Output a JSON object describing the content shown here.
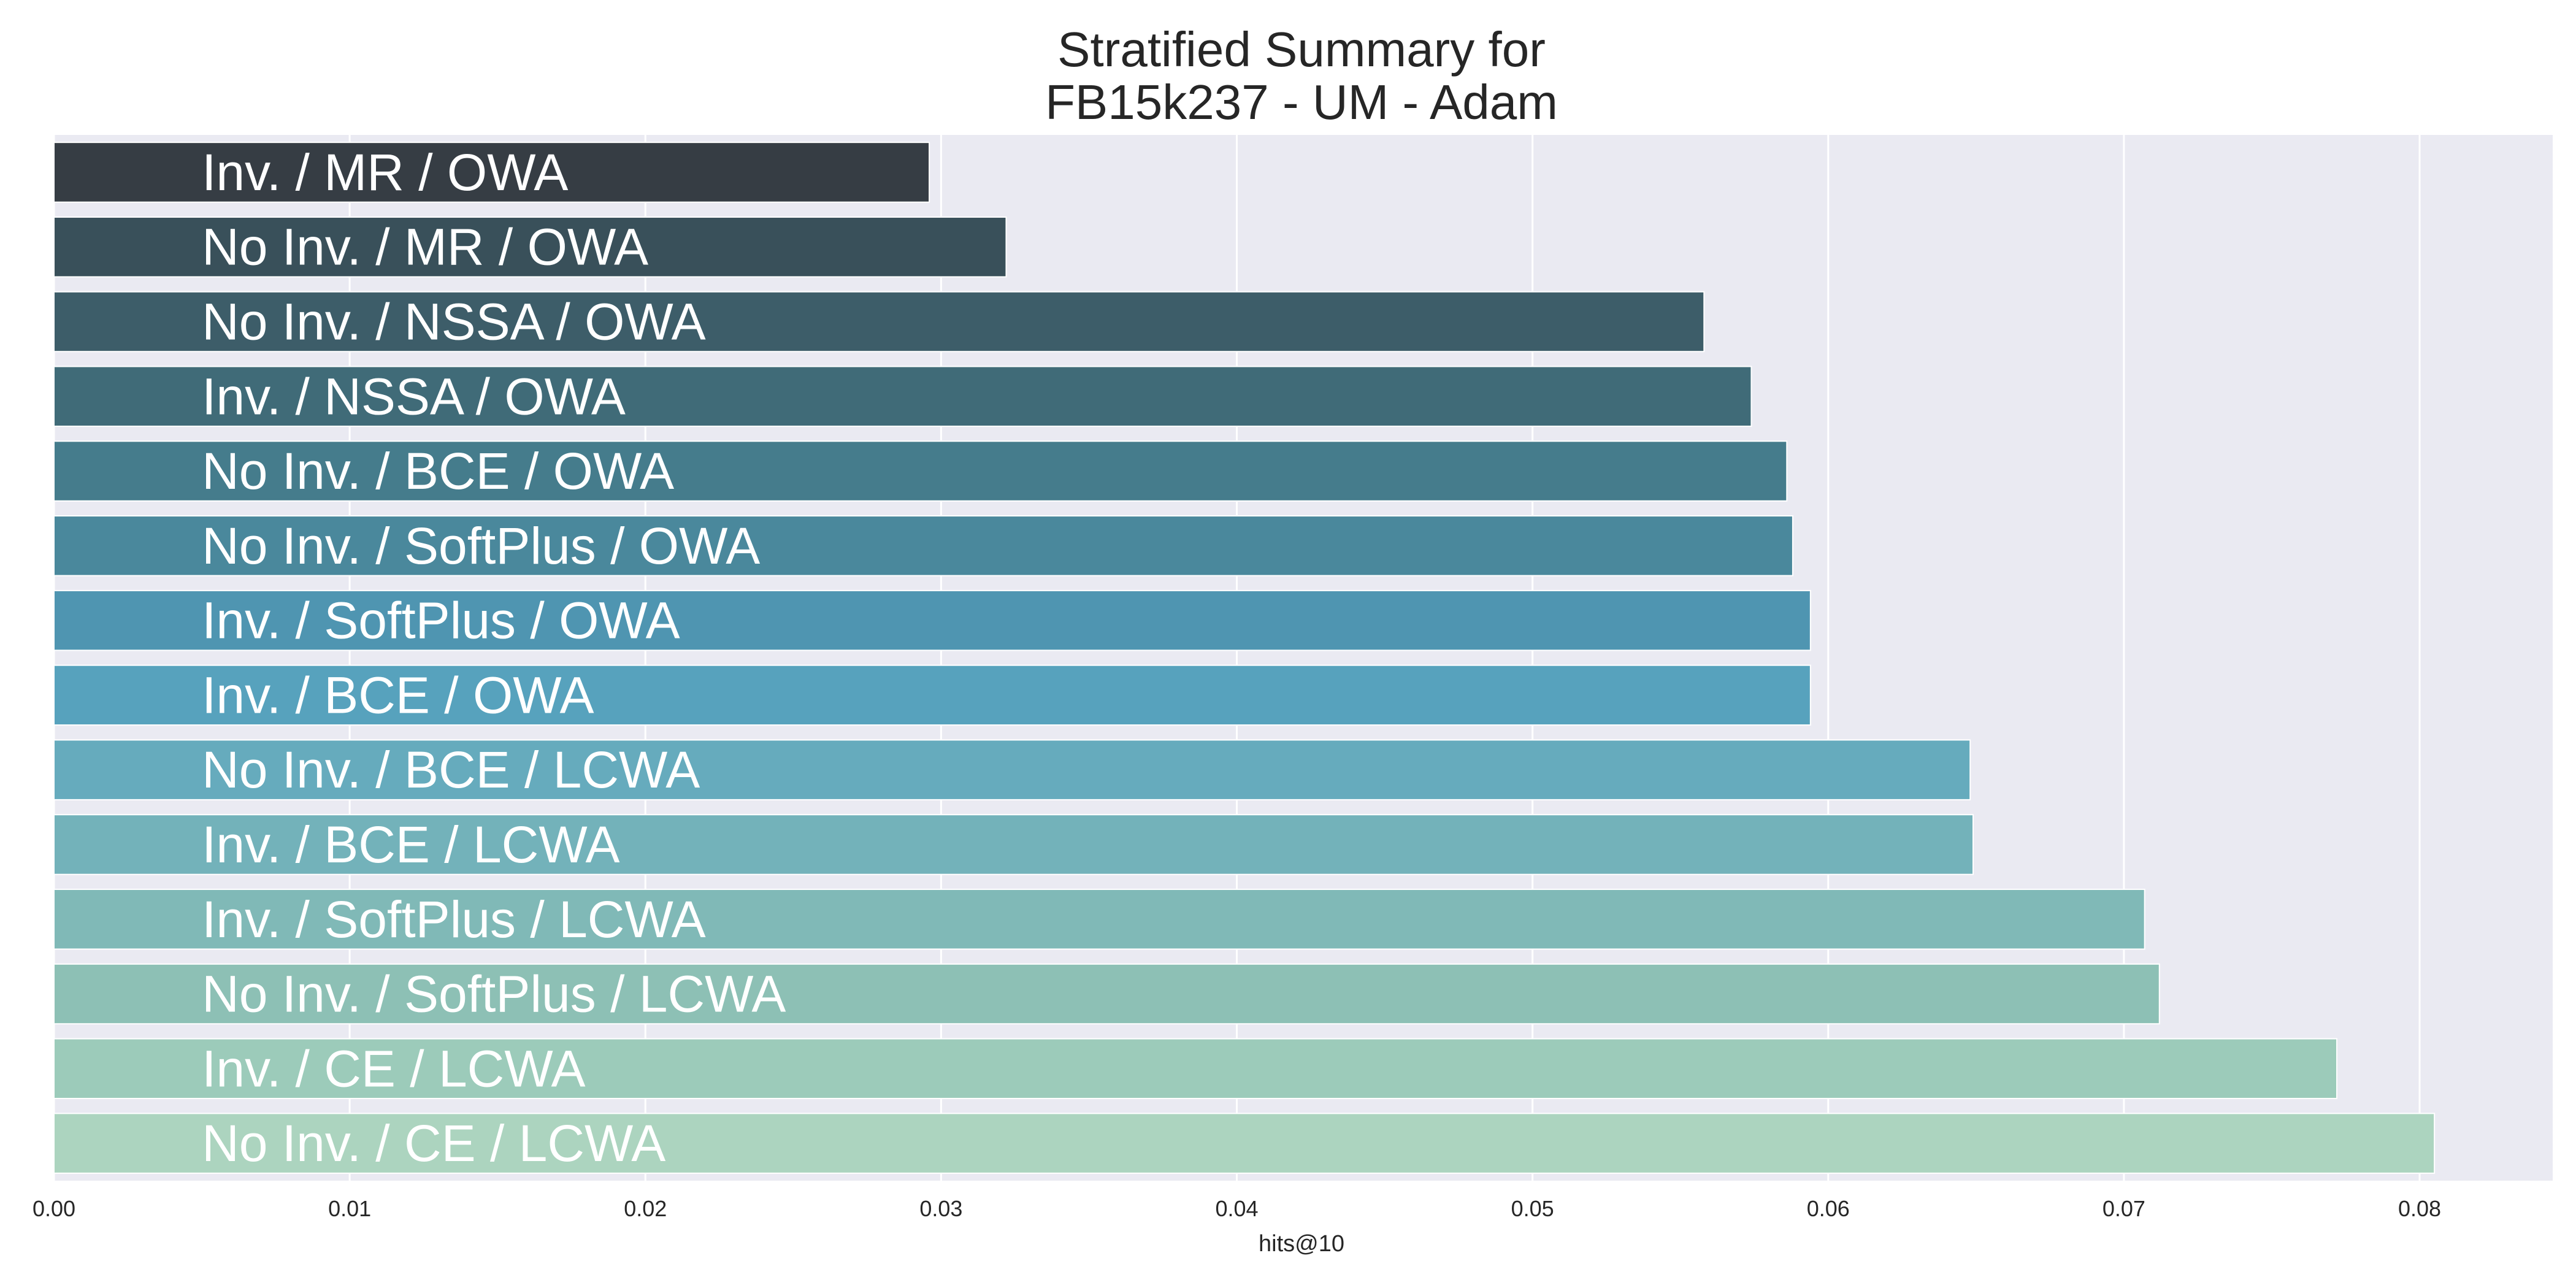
{
  "chart_data": {
    "type": "bar",
    "orientation": "horizontal",
    "title_lines": [
      "Stratified Summary for",
      "FB15k237 - UM - Adam"
    ],
    "xlabel": "hits@10",
    "ylabel": "",
    "xlim": [
      0.0,
      0.0845
    ],
    "xticks": [
      0.0,
      0.01,
      0.02,
      0.03,
      0.04,
      0.05,
      0.06,
      0.07,
      0.08
    ],
    "xtick_labels": [
      "0.00",
      "0.01",
      "0.02",
      "0.03",
      "0.04",
      "0.05",
      "0.06",
      "0.07",
      "0.08"
    ],
    "grid": true,
    "background": "#eaeaf2",
    "categories": [
      "Inv. / MR / OWA",
      "No Inv. / MR / OWA",
      "No Inv. / NSSA / OWA",
      "Inv. / NSSA / OWA",
      "No Inv. / BCE / OWA",
      "No Inv. / SoftPlus / OWA",
      "Inv. / SoftPlus / OWA",
      "Inv. / BCE / OWA",
      "No Inv. / BCE / LCWA",
      "Inv. / BCE / LCWA",
      "Inv. / SoftPlus / LCWA",
      "No Inv. / SoftPlus / LCWA",
      "Inv. / CE / LCWA",
      "No Inv. / CE / LCWA"
    ],
    "values": [
      0.0296,
      0.0322,
      0.0558,
      0.0574,
      0.0586,
      0.0588,
      0.0594,
      0.0594,
      0.0648,
      0.0649,
      0.0707,
      0.0712,
      0.0772,
      0.0805
    ],
    "colors": [
      "#363d44",
      "#39505a",
      "#3d5d69",
      "#406b78",
      "#457c8c",
      "#4a889c",
      "#4f95b1",
      "#57a2bd",
      "#66abbd",
      "#73b2ba",
      "#80b9b7",
      "#8dc0b5",
      "#9ccbba",
      "#acd4bf"
    ]
  }
}
